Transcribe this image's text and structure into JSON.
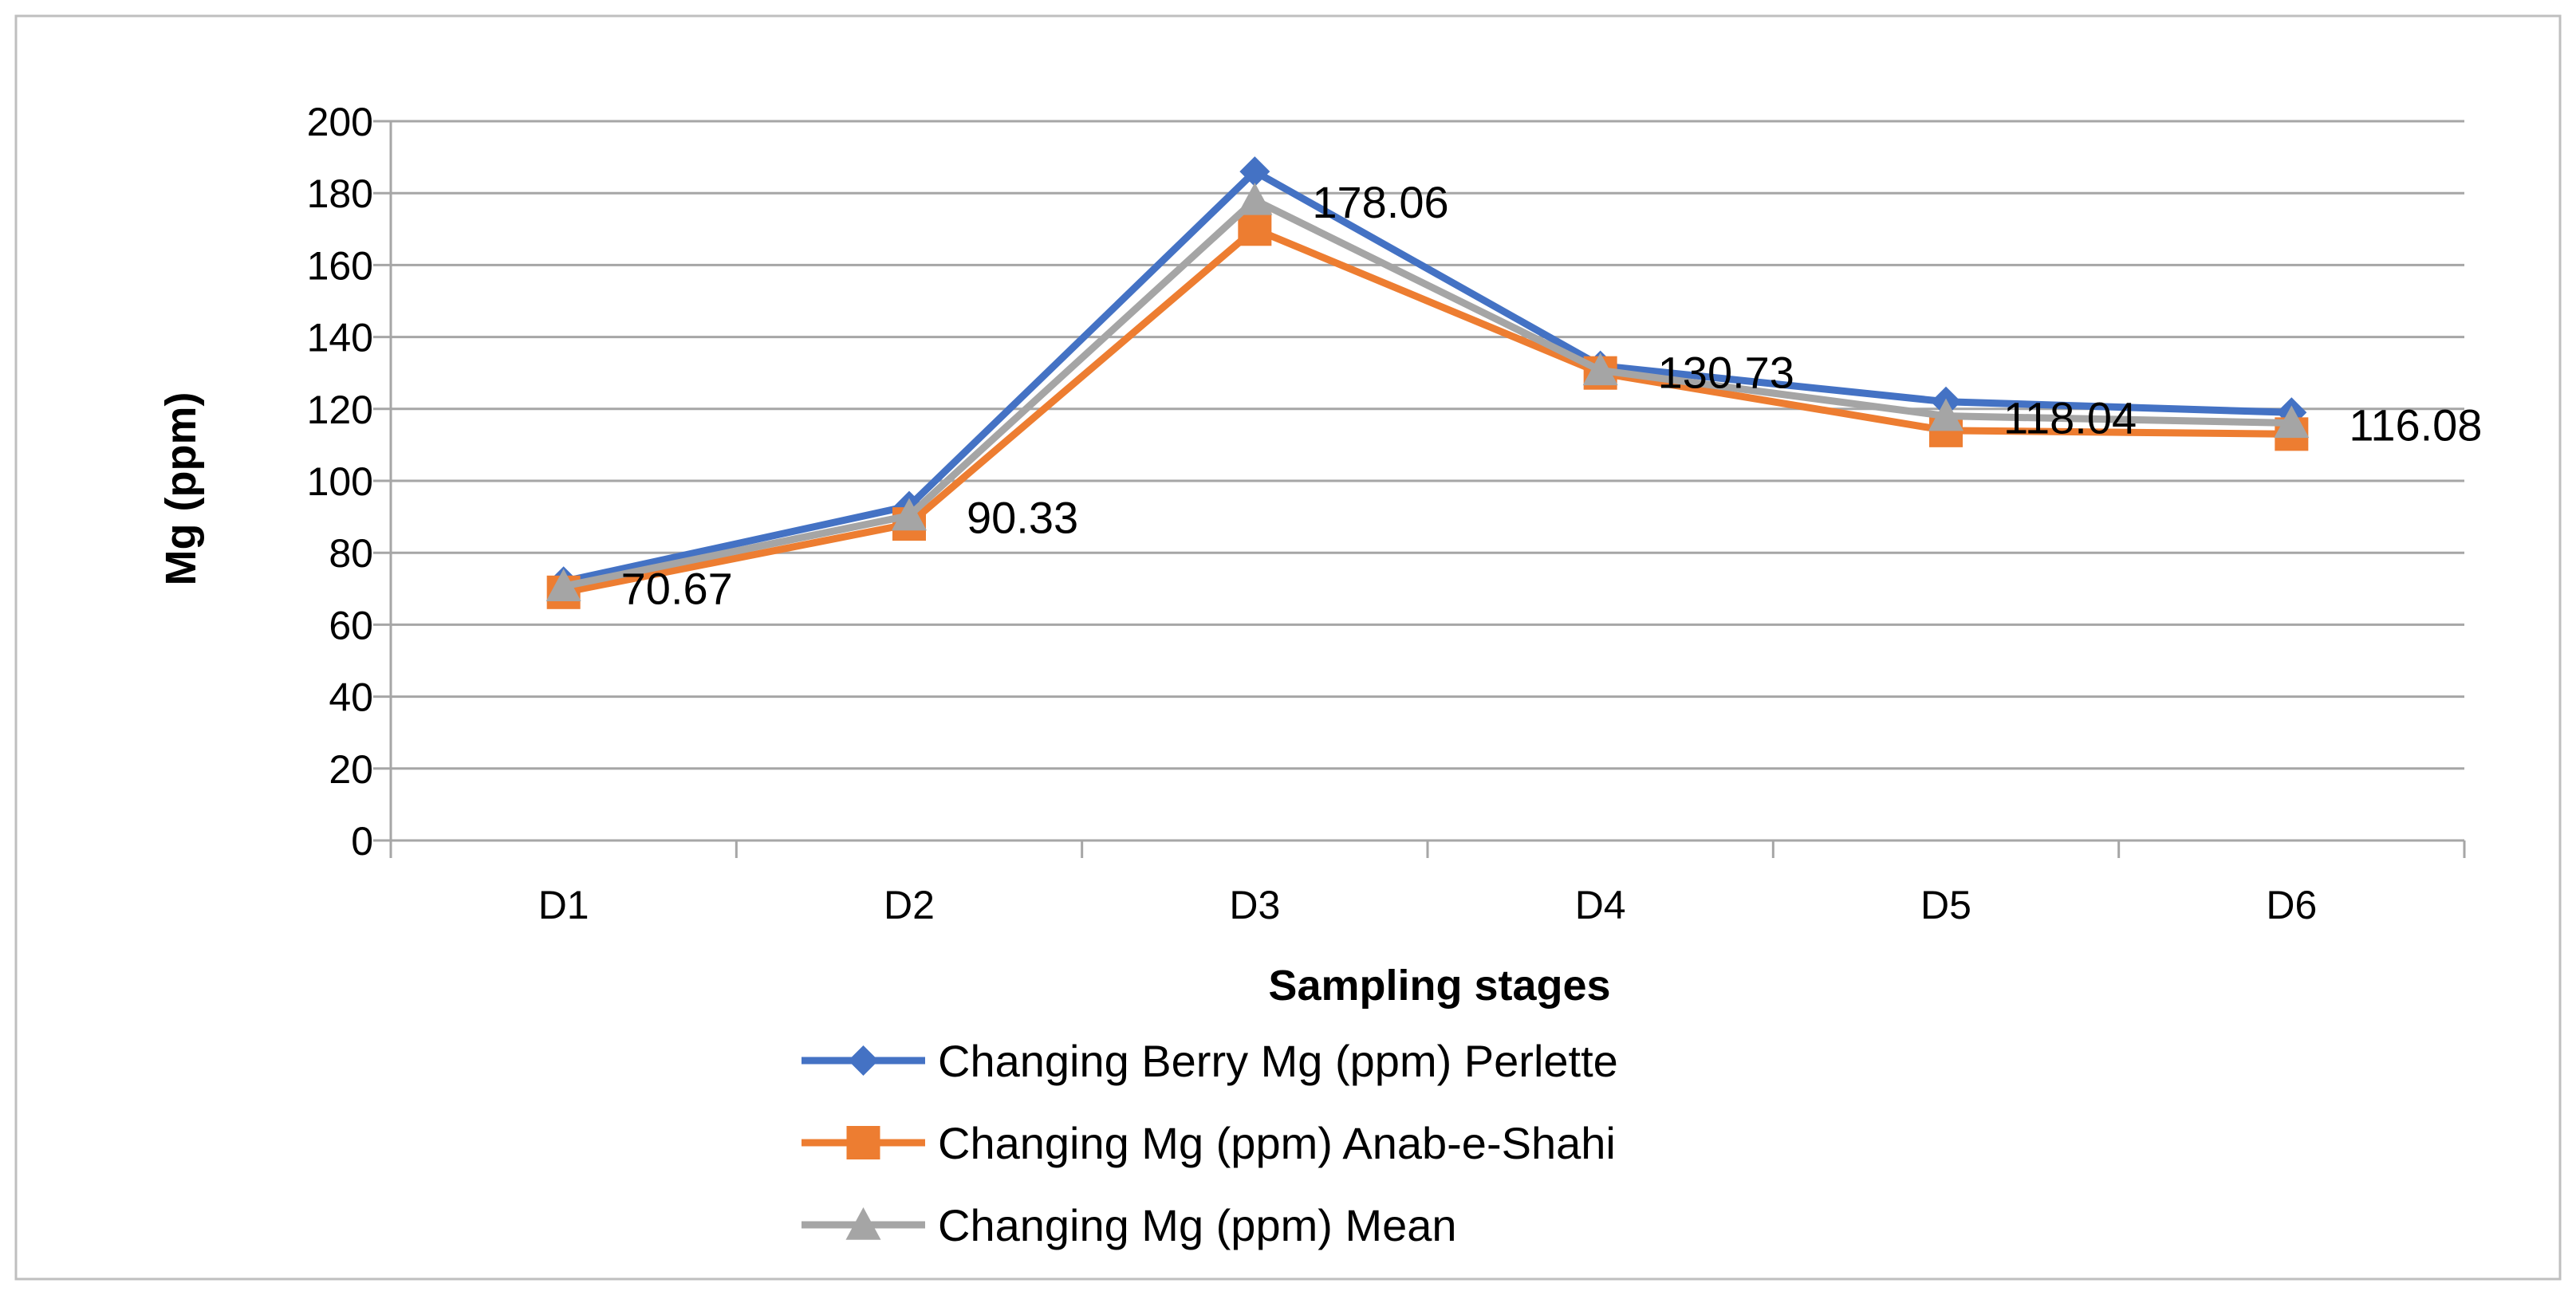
{
  "chart_data": {
    "type": "line",
    "title": "",
    "xlabel": "Sampling stages",
    "ylabel": "Mg (ppm)",
    "categories": [
      "D1",
      "D2",
      "D3",
      "D4",
      "D5",
      "D6"
    ],
    "ylim": [
      0,
      200
    ],
    "yticks": [
      0,
      20,
      40,
      60,
      80,
      100,
      120,
      140,
      160,
      180,
      200
    ],
    "grid": true,
    "legend_position": "bottom",
    "series": [
      {
        "name": "Changing Berry Mg (ppm) Perlette",
        "values": [
          72,
          93,
          186,
          132,
          122,
          119
        ],
        "color": "#4472C4",
        "marker": "diamond"
      },
      {
        "name": "Changing Mg (ppm) Anab-e-Shahi",
        "values": [
          69,
          88,
          170,
          130,
          114,
          113
        ],
        "color": "#ED7D31",
        "marker": "square"
      },
      {
        "name": "Changing Mg (ppm) Mean",
        "values": [
          70.67,
          90.33,
          178.06,
          130.73,
          118.04,
          116.08
        ],
        "color": "#A5A5A5",
        "marker": "triangle"
      }
    ],
    "data_labels": [
      "70.67",
      "90.33",
      "178.06",
      "130.73",
      "118.04",
      "116.08"
    ]
  }
}
